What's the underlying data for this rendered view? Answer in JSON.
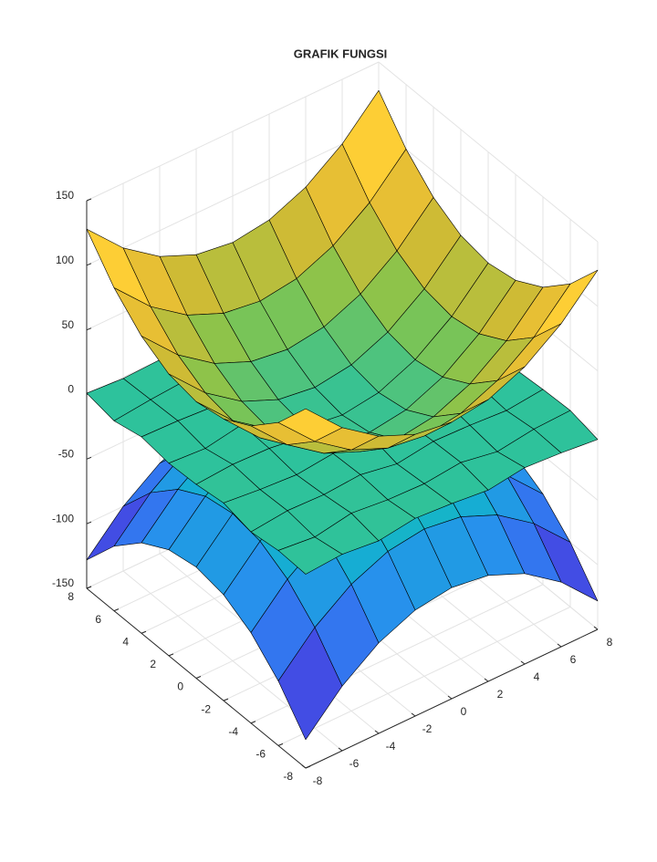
{
  "chart_data": {
    "type": "surface3d",
    "title": "GRAFIK FUNGSI",
    "x": [
      -8,
      -6,
      -4,
      -2,
      0,
      2,
      4,
      6,
      8
    ],
    "y": [
      -8,
      -6,
      -4,
      -2,
      0,
      2,
      4,
      6,
      8
    ],
    "xlim": [
      -8,
      8
    ],
    "ylim": [
      -8,
      8
    ],
    "zlim": [
      -150,
      150
    ],
    "xticks": [
      -8,
      -6,
      -4,
      -2,
      0,
      2,
      4,
      6,
      8
    ],
    "yticks": [
      -8,
      -6,
      -4,
      -2,
      0,
      2,
      4,
      6,
      8
    ],
    "zticks": [
      -150,
      -100,
      -50,
      0,
      50,
      100,
      150
    ],
    "grid": true,
    "colormap": [
      "#3e26a8",
      "#4352ed",
      "#2a8cf0",
      "#13b2cf",
      "#2ec29b",
      "#83c44e",
      "#d9ba31",
      "#fdc83a",
      "#f9fb15"
    ],
    "series": [
      {
        "z": [
          [
            128,
            100,
            80,
            68,
            64,
            68,
            80,
            100,
            128
          ],
          [
            100,
            72,
            52,
            40,
            36,
            40,
            52,
            72,
            100
          ],
          [
            80,
            52,
            32,
            20,
            16,
            20,
            32,
            52,
            80
          ],
          [
            68,
            40,
            20,
            8,
            4,
            8,
            20,
            40,
            68
          ],
          [
            64,
            36,
            16,
            4,
            0,
            4,
            16,
            36,
            64
          ],
          [
            68,
            40,
            20,
            8,
            4,
            8,
            20,
            40,
            68
          ],
          [
            80,
            52,
            32,
            20,
            16,
            20,
            32,
            52,
            80
          ],
          [
            100,
            72,
            52,
            40,
            36,
            40,
            52,
            72,
            100
          ],
          [
            128,
            100,
            80,
            68,
            64,
            68,
            80,
            100,
            128
          ]
        ]
      },
      {
        "z": [
          [
            0,
            2,
            -1,
            3,
            1,
            -2,
            2,
            0,
            -3
          ],
          [
            1,
            -2,
            3,
            0,
            -1,
            2,
            -3,
            1,
            2
          ],
          [
            -2,
            1,
            0,
            2,
            -3,
            1,
            0,
            -2,
            1
          ],
          [
            3,
            0,
            -2,
            1,
            2,
            -1,
            3,
            0,
            -1
          ],
          [
            0,
            2,
            1,
            -3,
            0,
            2,
            -1,
            1,
            3
          ],
          [
            -1,
            -3,
            2,
            1,
            -2,
            0,
            2,
            -3,
            0
          ],
          [
            2,
            1,
            -1,
            0,
            3,
            -2,
            1,
            2,
            -2
          ],
          [
            -3,
            0,
            2,
            -2,
            1,
            3,
            -1,
            0,
            1
          ],
          [
            1,
            -1,
            0,
            3,
            -2,
            1,
            0,
            2,
            -1
          ]
        ]
      },
      {
        "z": [
          [
            -128,
            -100,
            -80,
            -68,
            -64,
            -68,
            -80,
            -100,
            -128
          ],
          [
            -100,
            -72,
            -52,
            -40,
            -36,
            -40,
            -52,
            -72,
            -100
          ],
          [
            -80,
            -52,
            -32,
            -20,
            -16,
            -20,
            -32,
            -52,
            -80
          ],
          [
            -68,
            -40,
            -20,
            -8,
            -4,
            -8,
            -20,
            -40,
            -68
          ],
          [
            -64,
            -36,
            -16,
            -4,
            0,
            -4,
            -16,
            -36,
            -64
          ],
          [
            -68,
            -40,
            -20,
            -8,
            -4,
            -8,
            -20,
            -40,
            -68
          ],
          [
            -80,
            -52,
            -32,
            -20,
            -16,
            -20,
            -32,
            -52,
            -80
          ],
          [
            -100,
            -72,
            -52,
            -40,
            -36,
            -40,
            -52,
            -72,
            -100
          ],
          [
            -128,
            -100,
            -80,
            -68,
            -64,
            -68,
            -80,
            -100,
            -128
          ]
        ]
      }
    ]
  }
}
